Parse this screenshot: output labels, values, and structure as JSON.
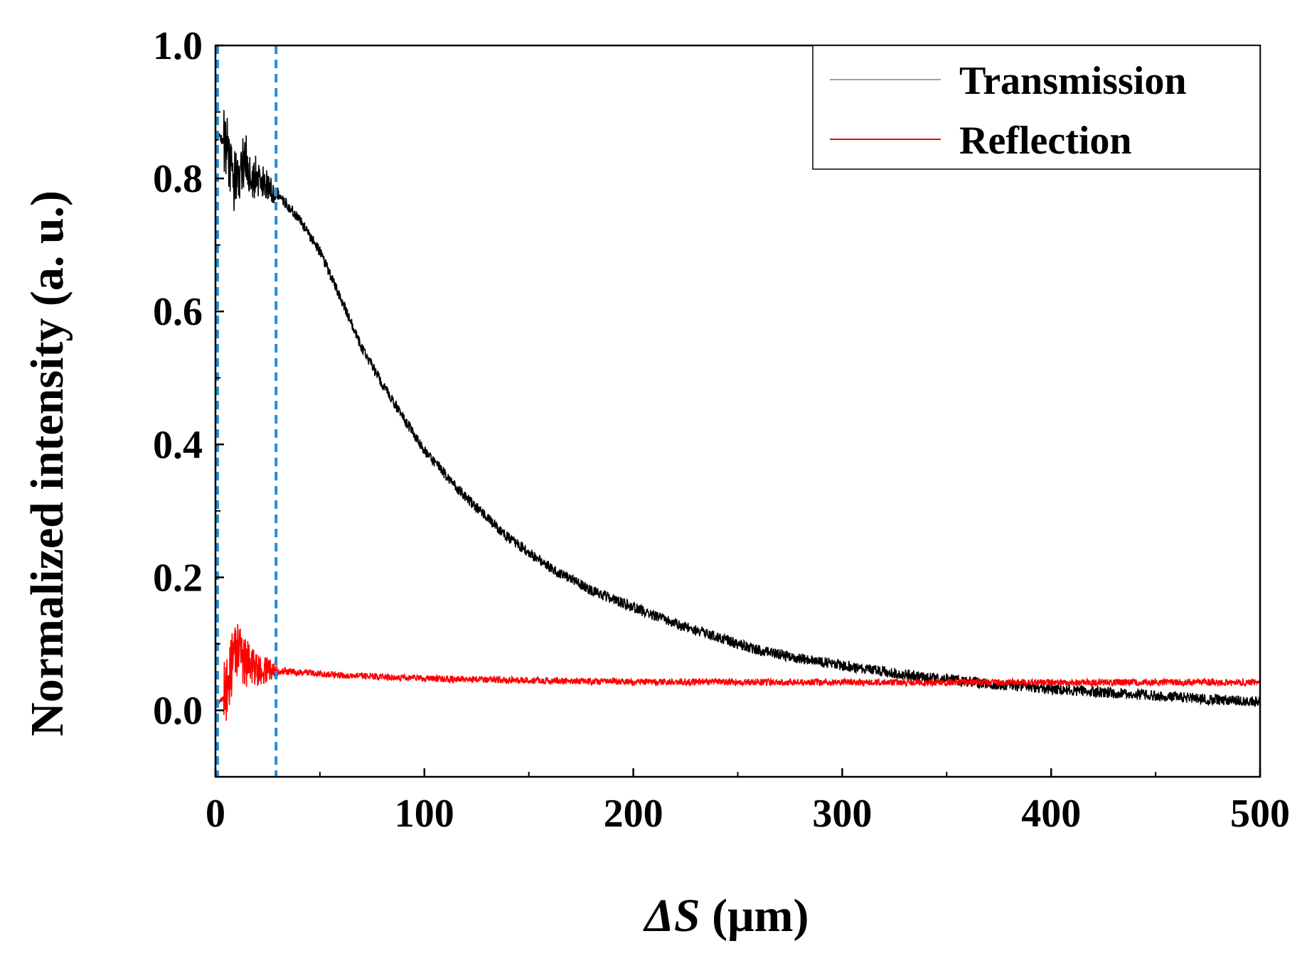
{
  "chart_data": {
    "type": "line",
    "title": "",
    "xlabel_symbol": "ΔS",
    "xlabel_unit": " (μm)",
    "ylabel": "Normalized intensity (a. u.)",
    "xlim": [
      0,
      500
    ],
    "ylim": [
      -0.1,
      1.0
    ],
    "xticks": [
      0,
      100,
      200,
      300,
      400,
      500
    ],
    "xtick_labels": [
      "0",
      "100",
      "200",
      "300",
      "400",
      "500"
    ],
    "yticks": [
      0.0,
      0.2,
      0.4,
      0.6,
      0.8,
      1.0
    ],
    "ytick_labels": [
      "0.0",
      "0.2",
      "0.4",
      "0.6",
      "0.8",
      "1.0"
    ],
    "grid": false,
    "legend_position": "top-right",
    "vlines": [
      {
        "x": 1,
        "color": "#1f8fdc",
        "style": "dashed"
      },
      {
        "x": 29,
        "color": "#1f8fdc",
        "style": "dashed"
      }
    ],
    "series": [
      {
        "name": "Transmission",
        "color": "#000000",
        "legend_color": "#a0a0a0",
        "noise": 0.008,
        "x": [
          0,
          2,
          4,
          6,
          8,
          10,
          12,
          14,
          16,
          18,
          20,
          22,
          24,
          26,
          28,
          30,
          40,
          50,
          60,
          70,
          80,
          90,
          100,
          120,
          140,
          160,
          180,
          200,
          220,
          240,
          260,
          280,
          300,
          320,
          340,
          360,
          380,
          400,
          420,
          440,
          460,
          480,
          500
        ],
        "y": [
          0.865,
          0.862,
          0.855,
          0.835,
          0.8,
          0.79,
          0.82,
          0.83,
          0.815,
          0.805,
          0.8,
          0.795,
          0.79,
          0.785,
          0.78,
          0.775,
          0.74,
          0.69,
          0.62,
          0.545,
          0.49,
          0.44,
          0.39,
          0.32,
          0.26,
          0.215,
          0.18,
          0.155,
          0.13,
          0.11,
          0.09,
          0.078,
          0.068,
          0.058,
          0.05,
          0.043,
          0.037,
          0.032,
          0.028,
          0.024,
          0.02,
          0.016,
          0.013
        ]
      },
      {
        "name": "Reflection",
        "color": "#ff0000",
        "legend_color": "#ff0000",
        "noise": 0.005,
        "x": [
          0,
          2,
          4,
          6,
          8,
          10,
          12,
          14,
          16,
          18,
          20,
          22,
          24,
          26,
          28,
          30,
          40,
          60,
          80,
          100,
          150,
          200,
          300,
          400,
          500
        ],
        "y": [
          0.005,
          0.012,
          0.02,
          0.04,
          0.075,
          0.095,
          0.085,
          0.07,
          0.068,
          0.065,
          0.063,
          0.062,
          0.061,
          0.06,
          0.06,
          0.059,
          0.057,
          0.053,
          0.05,
          0.048,
          0.045,
          0.043,
          0.042,
          0.042,
          0.042
        ]
      }
    ]
  }
}
